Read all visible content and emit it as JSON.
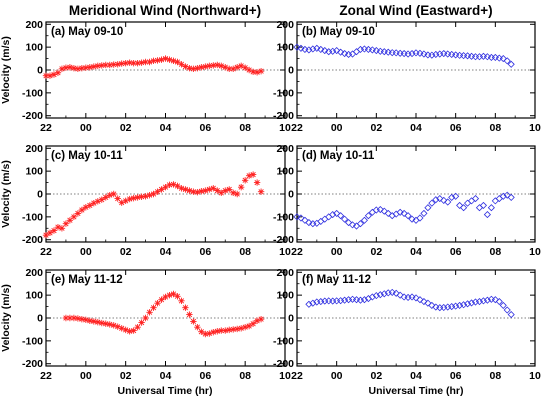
{
  "figure": {
    "left_title": "Meridional Wind (Northward+)",
    "right_title": "Zonal Wind (Eastward+)",
    "ylabel": "Velocity (m/s)",
    "xlabel": "Universal Time (hr)",
    "x_tick_labels": [
      "22",
      "00",
      "02",
      "04",
      "06",
      "08",
      "10"
    ],
    "y_tick_labels": [
      "200",
      "100",
      "0",
      "-100",
      "-200"
    ]
  },
  "colors": {
    "meridional": "#ff2020",
    "zonal": "#3030e0",
    "zero_line": "#555555"
  },
  "chart_data": [
    {
      "type": "scatter",
      "title": "(a) May 09-10",
      "marker": "asterisk",
      "color": "#ff2020",
      "xlabel": "",
      "ylabel": "Velocity (m/s)",
      "xlim": [
        22,
        34
      ],
      "ylim": [
        -210,
        210
      ],
      "xticks": [
        22,
        24,
        26,
        28,
        30,
        32,
        34
      ],
      "yticks": [
        -200,
        -100,
        0,
        100,
        200
      ],
      "x": [
        22.0,
        22.2,
        22.4,
        22.6,
        22.8,
        23.0,
        23.2,
        23.4,
        23.6,
        23.8,
        24.0,
        24.2,
        24.4,
        24.6,
        24.8,
        25.0,
        25.2,
        25.4,
        25.6,
        25.8,
        26.0,
        26.2,
        26.4,
        26.6,
        26.8,
        27.0,
        27.2,
        27.4,
        27.6,
        27.8,
        28.0,
        28.2,
        28.4,
        28.6,
        28.8,
        29.0,
        29.2,
        29.4,
        29.6,
        29.8,
        30.0,
        30.2,
        30.4,
        30.6,
        30.8,
        31.0,
        31.2,
        31.4,
        31.6,
        31.8,
        32.0,
        32.2,
        32.4,
        32.6,
        32.8
      ],
      "y": [
        -25,
        -25,
        -20,
        -12,
        5,
        10,
        12,
        8,
        5,
        8,
        10,
        12,
        15,
        18,
        20,
        22,
        22,
        24,
        25,
        28,
        30,
        32,
        30,
        30,
        32,
        35,
        35,
        40,
        42,
        45,
        50,
        45,
        40,
        35,
        25,
        15,
        8,
        5,
        8,
        12,
        15,
        18,
        20,
        22,
        18,
        12,
        5,
        5,
        12,
        18,
        10,
        0,
        -8,
        -10,
        -5
      ]
    },
    {
      "type": "scatter",
      "title": "(b) May 09-10",
      "marker": "diamond",
      "color": "#3030e0",
      "xlabel": "",
      "ylabel": "",
      "xlim": [
        22,
        34
      ],
      "ylim": [
        -210,
        210
      ],
      "xticks": [
        22,
        24,
        26,
        28,
        30,
        32,
        34
      ],
      "yticks": [
        -200,
        -100,
        0,
        100,
        200
      ],
      "x": [
        22.0,
        22.2,
        22.4,
        22.6,
        22.8,
        23.0,
        23.2,
        23.4,
        23.6,
        23.8,
        24.0,
        24.2,
        24.4,
        24.6,
        24.8,
        25.0,
        25.2,
        25.4,
        25.6,
        25.8,
        26.0,
        26.2,
        26.4,
        26.6,
        26.8,
        27.0,
        27.2,
        27.4,
        27.6,
        27.8,
        28.0,
        28.2,
        28.4,
        28.6,
        28.8,
        29.0,
        29.2,
        29.4,
        29.6,
        29.8,
        30.0,
        30.2,
        30.4,
        30.6,
        30.8,
        31.0,
        31.2,
        31.4,
        31.6,
        31.8,
        32.0,
        32.2,
        32.4,
        32.6,
        32.8
      ],
      "y": [
        100,
        95,
        90,
        88,
        92,
        95,
        90,
        85,
        80,
        82,
        85,
        78,
        72,
        68,
        70,
        80,
        90,
        92,
        90,
        88,
        85,
        82,
        80,
        78,
        76,
        75,
        73,
        72,
        70,
        72,
        75,
        73,
        70,
        66,
        65,
        68,
        70,
        72,
        70,
        68,
        66,
        64,
        63,
        62,
        60,
        58,
        58,
        60,
        58,
        55,
        55,
        52,
        50,
        40,
        25
      ]
    },
    {
      "type": "scatter",
      "title": "(c) May 10-11",
      "marker": "asterisk",
      "color": "#ff2020",
      "xlabel": "",
      "ylabel": "Velocity (m/s)",
      "xlim": [
        22,
        34
      ],
      "ylim": [
        -210,
        210
      ],
      "xticks": [
        22,
        24,
        26,
        28,
        30,
        32,
        34
      ],
      "yticks": [
        -200,
        -100,
        0,
        100,
        200
      ],
      "x": [
        22.0,
        22.2,
        22.4,
        22.6,
        22.8,
        23.0,
        23.2,
        23.4,
        23.6,
        23.8,
        24.0,
        24.2,
        24.4,
        24.6,
        24.8,
        25.0,
        25.2,
        25.4,
        25.6,
        25.8,
        26.0,
        26.2,
        26.4,
        26.6,
        26.8,
        27.0,
        27.2,
        27.4,
        27.6,
        27.8,
        28.0,
        28.2,
        28.4,
        28.6,
        28.8,
        29.0,
        29.2,
        29.4,
        29.6,
        29.8,
        30.0,
        30.2,
        30.4,
        30.6,
        30.8,
        31.0,
        31.2,
        31.4,
        31.6,
        31.8,
        32.0,
        32.2,
        32.4,
        32.6,
        32.8
      ],
      "y": [
        -180,
        -170,
        -160,
        -145,
        -150,
        -130,
        -115,
        -100,
        -85,
        -70,
        -58,
        -50,
        -40,
        -32,
        -25,
        -15,
        -5,
        0,
        -20,
        -38,
        -30,
        -22,
        -18,
        -15,
        -12,
        -10,
        -5,
        0,
        10,
        20,
        30,
        40,
        42,
        35,
        25,
        20,
        15,
        10,
        8,
        12,
        15,
        20,
        25,
        15,
        5,
        15,
        20,
        5,
        0,
        30,
        60,
        80,
        85,
        50,
        10
      ]
    },
    {
      "type": "scatter",
      "title": "(d) May 10-11",
      "marker": "diamond",
      "color": "#3030e0",
      "xlabel": "",
      "ylabel": "",
      "xlim": [
        22,
        34
      ],
      "ylim": [
        -210,
        210
      ],
      "xticks": [
        22,
        24,
        26,
        28,
        30,
        32,
        34
      ],
      "yticks": [
        -200,
        -100,
        0,
        100,
        200
      ],
      "x": [
        22.0,
        22.2,
        22.4,
        22.6,
        22.8,
        23.0,
        23.2,
        23.4,
        23.6,
        23.8,
        24.0,
        24.2,
        24.4,
        24.6,
        24.8,
        25.0,
        25.2,
        25.4,
        25.6,
        25.8,
        26.0,
        26.2,
        26.4,
        26.6,
        26.8,
        27.0,
        27.2,
        27.4,
        27.6,
        27.8,
        28.0,
        28.2,
        28.4,
        28.6,
        28.8,
        29.0,
        29.2,
        29.4,
        29.6,
        29.8,
        30.0,
        30.2,
        30.4,
        30.6,
        30.8,
        31.0,
        31.2,
        31.4,
        31.6,
        31.8,
        32.0,
        32.2,
        32.4,
        32.6,
        32.8
      ],
      "y": [
        -100,
        -105,
        -115,
        -125,
        -130,
        -128,
        -120,
        -110,
        -100,
        -90,
        -85,
        -95,
        -110,
        -125,
        -135,
        -140,
        -130,
        -115,
        -95,
        -80,
        -70,
        -68,
        -75,
        -85,
        -95,
        -88,
        -80,
        -85,
        -95,
        -110,
        -115,
        -105,
        -85,
        -60,
        -40,
        -25,
        -20,
        -28,
        -35,
        -15,
        -10,
        -50,
        -60,
        -40,
        -30,
        -20,
        -60,
        -50,
        -90,
        -60,
        -30,
        -20,
        -10,
        -5,
        -15
      ]
    },
    {
      "type": "scatter",
      "title": "(e) May 11-12",
      "marker": "asterisk",
      "color": "#ff2020",
      "xlabel": "Universal Time (hr)",
      "ylabel": "Velocity (m/s)",
      "xlim": [
        22,
        34
      ],
      "ylim": [
        -210,
        210
      ],
      "xticks": [
        22,
        24,
        26,
        28,
        30,
        32,
        34
      ],
      "yticks": [
        -200,
        -100,
        0,
        100,
        200
      ],
      "x": [
        23.0,
        23.2,
        23.4,
        23.6,
        23.8,
        24.0,
        24.2,
        24.4,
        24.6,
        24.8,
        25.0,
        25.2,
        25.4,
        25.6,
        25.8,
        26.0,
        26.2,
        26.4,
        26.6,
        26.8,
        27.0,
        27.2,
        27.4,
        27.6,
        27.8,
        28.0,
        28.2,
        28.4,
        28.6,
        28.8,
        29.0,
        29.2,
        29.4,
        29.6,
        29.8,
        30.0,
        30.2,
        30.4,
        30.6,
        30.8,
        31.0,
        31.2,
        31.4,
        31.6,
        31.8,
        32.0,
        32.2,
        32.4,
        32.6,
        32.8
      ],
      "y": [
        0,
        0,
        0,
        -2,
        -5,
        -8,
        -12,
        -15,
        -18,
        -22,
        -25,
        -28,
        -32,
        -38,
        -45,
        -52,
        -58,
        -55,
        -40,
        -20,
        0,
        25,
        45,
        65,
        80,
        92,
        100,
        105,
        95,
        75,
        45,
        15,
        -15,
        -40,
        -60,
        -70,
        -68,
        -62,
        -58,
        -55,
        -55,
        -52,
        -50,
        -48,
        -45,
        -40,
        -35,
        -25,
        -12,
        -5
      ]
    },
    {
      "type": "scatter",
      "title": "(f) May 11-12",
      "marker": "diamond",
      "color": "#3030e0",
      "xlabel": "Universal Time (hr)",
      "ylabel": "",
      "xlim": [
        22,
        34
      ],
      "ylim": [
        -210,
        210
      ],
      "xticks": [
        22,
        24,
        26,
        28,
        30,
        32,
        34
      ],
      "yticks": [
        -200,
        -100,
        0,
        100,
        200
      ],
      "x": [
        22.6,
        22.8,
        23.0,
        23.2,
        23.4,
        23.6,
        23.8,
        24.0,
        24.2,
        24.4,
        24.6,
        24.8,
        25.0,
        25.2,
        25.4,
        25.6,
        25.8,
        26.0,
        26.2,
        26.4,
        26.6,
        26.8,
        27.0,
        27.2,
        27.4,
        27.6,
        27.8,
        28.0,
        28.2,
        28.4,
        28.6,
        28.8,
        29.0,
        29.2,
        29.4,
        29.6,
        29.8,
        30.0,
        30.2,
        30.4,
        30.6,
        30.8,
        31.0,
        31.2,
        31.4,
        31.6,
        31.8,
        32.0,
        32.2,
        32.4,
        32.6,
        32.8
      ],
      "y": [
        60,
        65,
        70,
        72,
        74,
        75,
        74,
        75,
        76,
        78,
        80,
        82,
        80,
        78,
        80,
        85,
        92,
        98,
        102,
        106,
        110,
        112,
        108,
        100,
        92,
        90,
        92,
        88,
        80,
        72,
        65,
        55,
        48,
        45,
        46,
        48,
        50,
        52,
        55,
        58,
        62,
        66,
        70,
        72,
        75,
        78,
        82,
        80,
        72,
        55,
        35,
        15
      ]
    }
  ]
}
